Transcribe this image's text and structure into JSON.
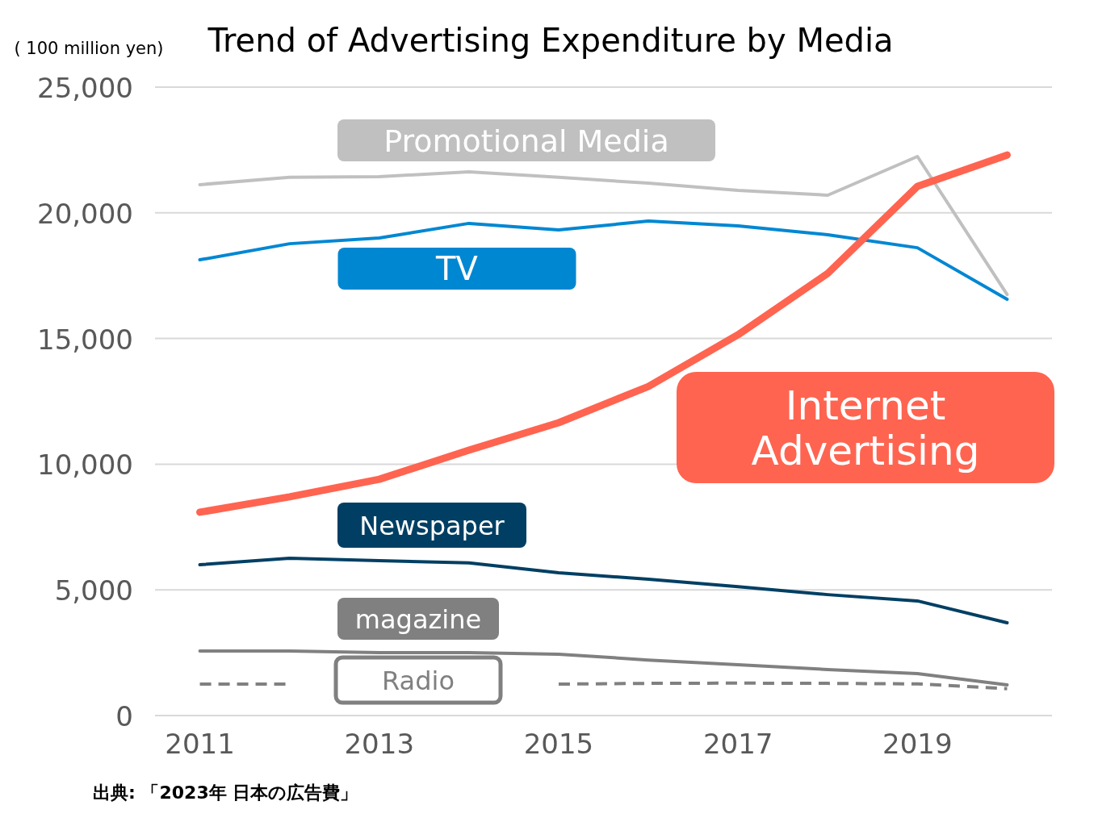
{
  "chart_data": {
    "type": "line",
    "title": "Trend of Advertising Expenditure by Media",
    "ylabel": "( 100 million yen)",
    "x": [
      2011,
      2012,
      2013,
      2014,
      2015,
      2016,
      2017,
      2018,
      2019,
      2020
    ],
    "xlim": [
      2010.5,
      2020.5
    ],
    "xticks": [
      2011,
      2013,
      2015,
      2017,
      2019
    ],
    "ylim": [
      0,
      25000
    ],
    "yticks": [
      {
        "value": 0,
        "label": "0"
      },
      {
        "value": 5000,
        "label": "5,000"
      },
      {
        "value": 10000,
        "label": "10,000"
      },
      {
        "value": 15000,
        "label": "15,000"
      },
      {
        "value": 20000,
        "label": "20,000"
      },
      {
        "value": 25000,
        "label": "25,000"
      }
    ],
    "grid": "y",
    "marker": "none",
    "series": [
      {
        "name": "Promotional Media",
        "color": "#c0c0c0",
        "values": [
          21120,
          21410,
          21440,
          21630,
          21410,
          21180,
          20890,
          20700,
          22240,
          16750
        ]
      },
      {
        "name": "TV",
        "color": "#0087d2",
        "values": [
          18130,
          18770,
          19000,
          19580,
          19320,
          19670,
          19480,
          19130,
          18610,
          16560
        ]
      },
      {
        "name": "Internet\nAdvertising",
        "color": "#ff6450",
        "values": [
          8090,
          8700,
          9400,
          10560,
          11650,
          13090,
          15150,
          17590,
          21050,
          22300
        ]
      },
      {
        "name": "Newspaper",
        "color": "#003f63",
        "values": [
          6000,
          6260,
          6160,
          6070,
          5680,
          5420,
          5130,
          4810,
          4560,
          3690
        ]
      },
      {
        "name": "magazine",
        "color": "#808080",
        "values": [
          2570,
          2570,
          2500,
          2500,
          2440,
          2210,
          2020,
          1830,
          1670,
          1220
        ]
      },
      {
        "name": "Radio",
        "color": "#808080",
        "line_style": "dashed",
        "values": [
          1250,
          1250,
          null,
          null,
          1250,
          1280,
          1290,
          1280,
          1260,
          1070
        ]
      }
    ],
    "annotations": [
      "出典: 「2023年 日本の広告費」"
    ]
  }
}
